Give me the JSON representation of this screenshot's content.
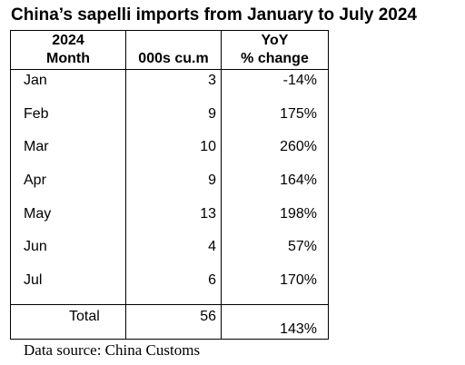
{
  "title": "China’s sapelli imports from January to July 2024",
  "table": {
    "headers": {
      "col1_line1": "2024",
      "col1_line2": "Month",
      "col2": "000s cu.m",
      "col3_line1": "YoY",
      "col3_line2": "% change"
    },
    "rows": [
      {
        "month": "Jan",
        "volume": "3",
        "yoy": "-14%"
      },
      {
        "month": "Feb",
        "volume": "9",
        "yoy": "175%"
      },
      {
        "month": "Mar",
        "volume": "10",
        "yoy": "260%"
      },
      {
        "month": "Apr",
        "volume": "9",
        "yoy": "164%"
      },
      {
        "month": "May",
        "volume": "13",
        "yoy": "198%"
      },
      {
        "month": "Jun",
        "volume": "4",
        "yoy": "57%"
      },
      {
        "month": "Jul",
        "volume": "6",
        "yoy": "170%"
      }
    ],
    "total": {
      "label": "Total",
      "volume": "56",
      "yoy": "143%"
    }
  },
  "source": "Data source: China Customs"
}
